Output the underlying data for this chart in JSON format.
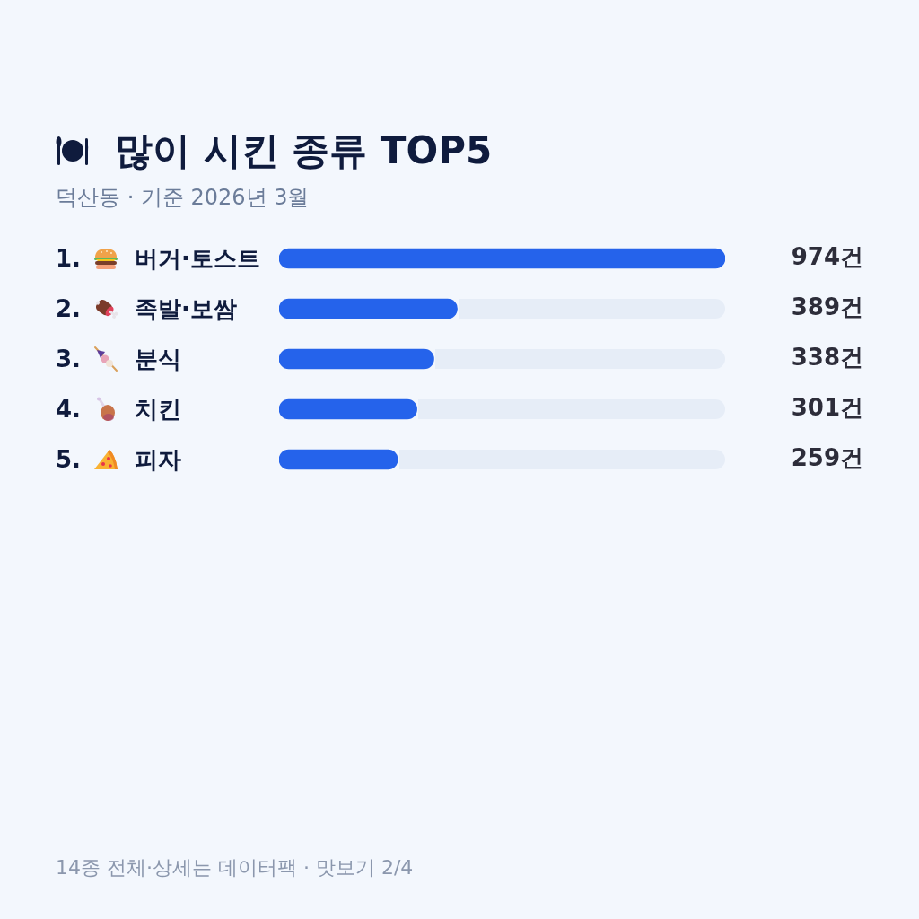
{
  "chart_data": {
    "type": "bar",
    "orientation": "horizontal",
    "title": "많이 시킨 종류 TOP5",
    "subtitle": "덕산동 · 기준 2026년 3월",
    "categories": [
      "1. 버거·토스트",
      "2. 족발·보쌈",
      "3. 분식",
      "4. 치킨",
      "5. 피자"
    ],
    "values": [
      974,
      389,
      338,
      301,
      259
    ],
    "color": "#2563eb",
    "value_labels": [
      "974건",
      "389건",
      "338건",
      "301건",
      "259건"
    ],
    "annotations": [
      "14종 전체·상세는 데이터팩 · 맛보기 2/4"
    ],
    "grid": false,
    "legend": false
  }
}
